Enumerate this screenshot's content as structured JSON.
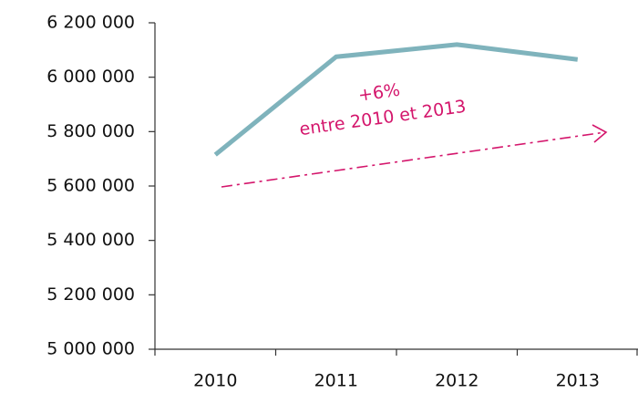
{
  "chart_data": {
    "type": "line",
    "categories": [
      "2010",
      "2011",
      "2012",
      "2013"
    ],
    "series": [
      {
        "name": null,
        "color": "#7fb3bc",
        "values": [
          5715000,
          6075000,
          6120000,
          6065000
        ]
      }
    ],
    "ylim": [
      5000000,
      6200000
    ],
    "yticks": [
      {
        "value": 5000000,
        "label": "5 000 000"
      },
      {
        "value": 5200000,
        "label": "5 200 000"
      },
      {
        "value": 5400000,
        "label": "5 400 000"
      },
      {
        "value": 5600000,
        "label": "5 600 000"
      },
      {
        "value": 5800000,
        "label": "5 800 000"
      },
      {
        "value": 6000000,
        "label": "6 000 000"
      },
      {
        "value": 6200000,
        "label": "6 200 000"
      }
    ],
    "annotations": [
      "+6%",
      "entre 2010 et 2013"
    ],
    "annotation_color": "#d4166c",
    "grid": false
  }
}
